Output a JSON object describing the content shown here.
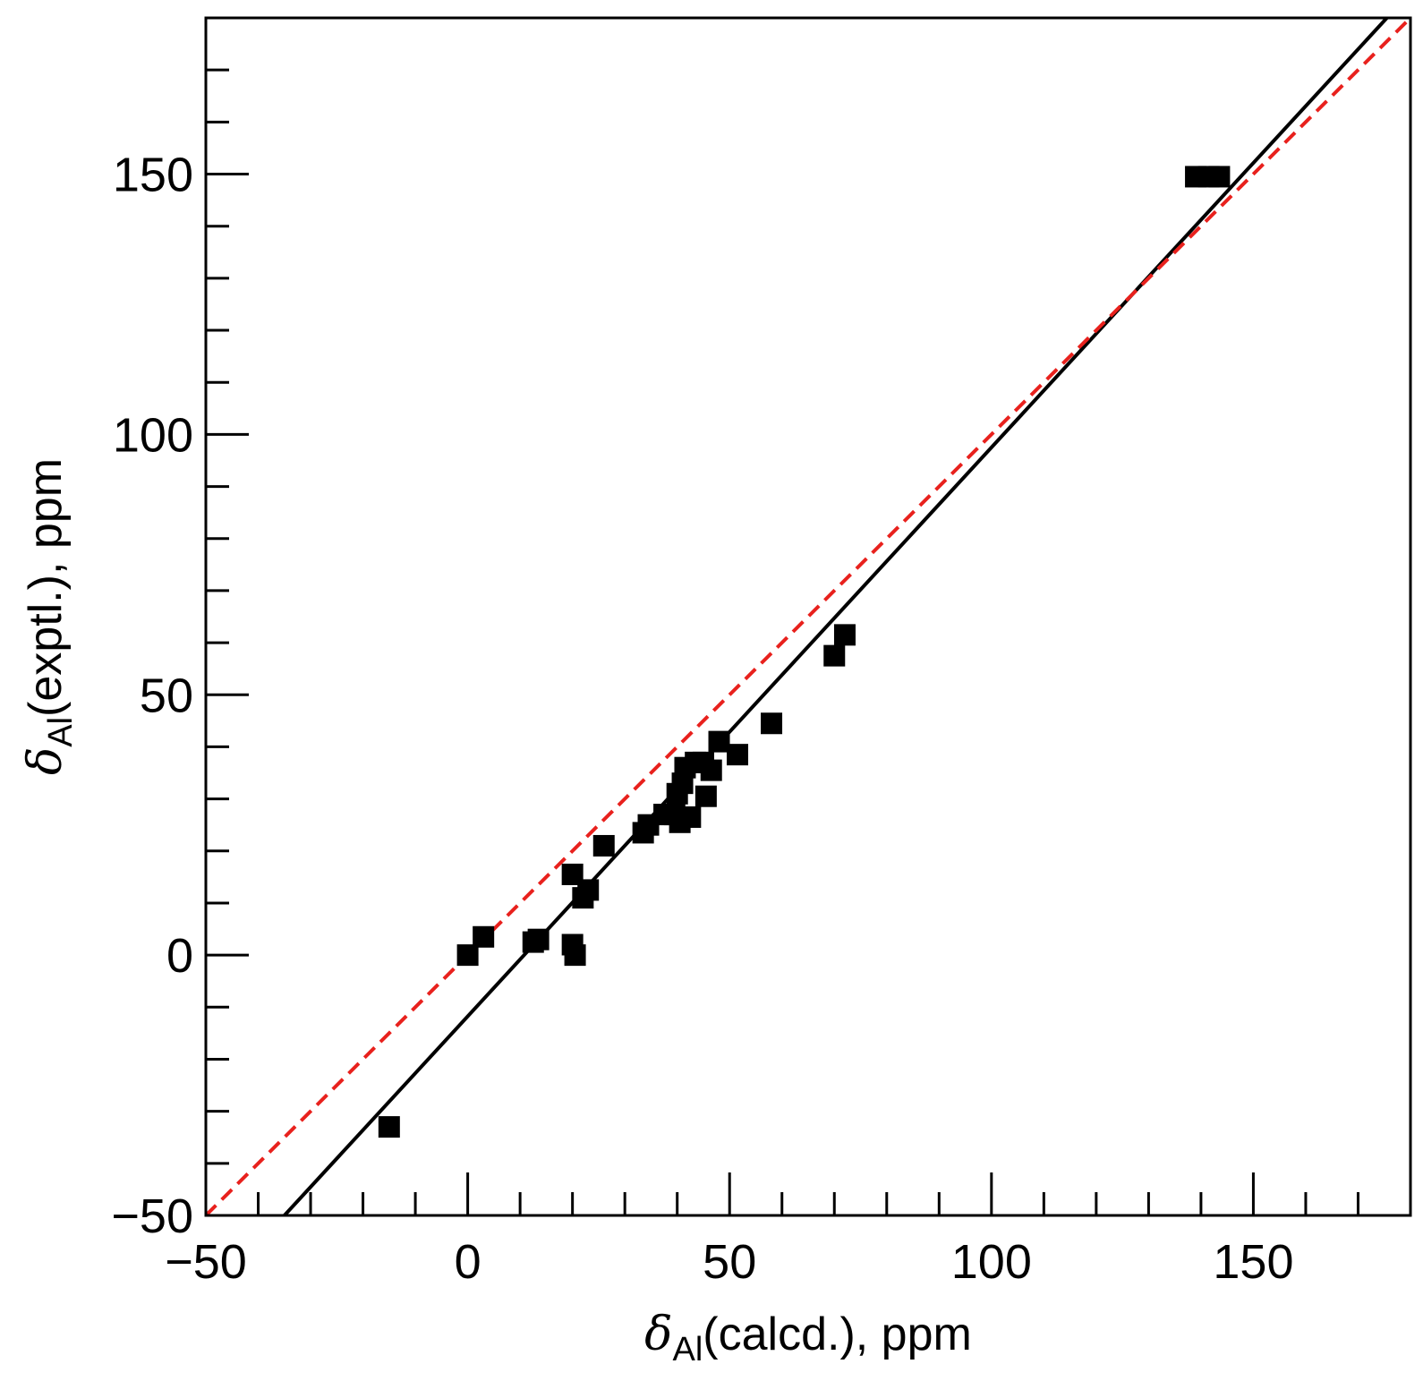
{
  "chart_data": {
    "type": "scatter",
    "xlabel": {
      "symbol": "δ",
      "subscript": "Al",
      "text": "(calcd.), ppm"
    },
    "ylabel": {
      "symbol": "δ",
      "subscript": "Al",
      "text": "(exptl.), ppm"
    },
    "xlim": [
      -50,
      180
    ],
    "ylim": [
      -50,
      180
    ],
    "x_ticks": [
      -50,
      0,
      50,
      100,
      150
    ],
    "y_ticks": [
      -50,
      0,
      50,
      100,
      150
    ],
    "x_tick_labels": [
      "−50",
      "0",
      "50",
      "100",
      "150"
    ],
    "y_tick_labels": [
      "−50",
      "0",
      "50",
      "100",
      "150"
    ],
    "minor_tick_step": 10,
    "grid": false,
    "marker": "filled-square",
    "marker_color": "#000000",
    "series": [
      {
        "points": [
          [
            -15,
            -33
          ],
          [
            0,
            0
          ],
          [
            3,
            3.5
          ],
          [
            12.5,
            2.5
          ],
          [
            13.5,
            3
          ],
          [
            20,
            2
          ],
          [
            20.5,
            0
          ],
          [
            20,
            15.5
          ],
          [
            22,
            11
          ],
          [
            23,
            12.5
          ],
          [
            26,
            21
          ],
          [
            33.5,
            23.5
          ],
          [
            34.5,
            25
          ],
          [
            37.5,
            27
          ],
          [
            39.5,
            27
          ],
          [
            40,
            31
          ],
          [
            40.5,
            25.5
          ],
          [
            41,
            33
          ],
          [
            41.5,
            36
          ],
          [
            42.5,
            26.5
          ],
          [
            43.5,
            37
          ],
          [
            45,
            37
          ],
          [
            45.5,
            30.5
          ],
          [
            46.5,
            35.5
          ],
          [
            48,
            41
          ],
          [
            51.5,
            38.5
          ],
          [
            58,
            44.5
          ],
          [
            70,
            57.5
          ],
          [
            72,
            61.5
          ],
          [
            139,
            149.5
          ],
          [
            141.5,
            149.5
          ],
          [
            143.5,
            149.5
          ]
        ]
      }
    ],
    "lines": [
      {
        "kind": "linear-fit",
        "color": "#000000",
        "style": "solid",
        "x": [
          -35,
          175.5
        ],
        "y": [
          -50,
          180
        ]
      },
      {
        "kind": "y=x",
        "color": "#e8211d",
        "style": "dashed",
        "x": [
          -50,
          180
        ],
        "y": [
          -50,
          180
        ]
      }
    ]
  }
}
